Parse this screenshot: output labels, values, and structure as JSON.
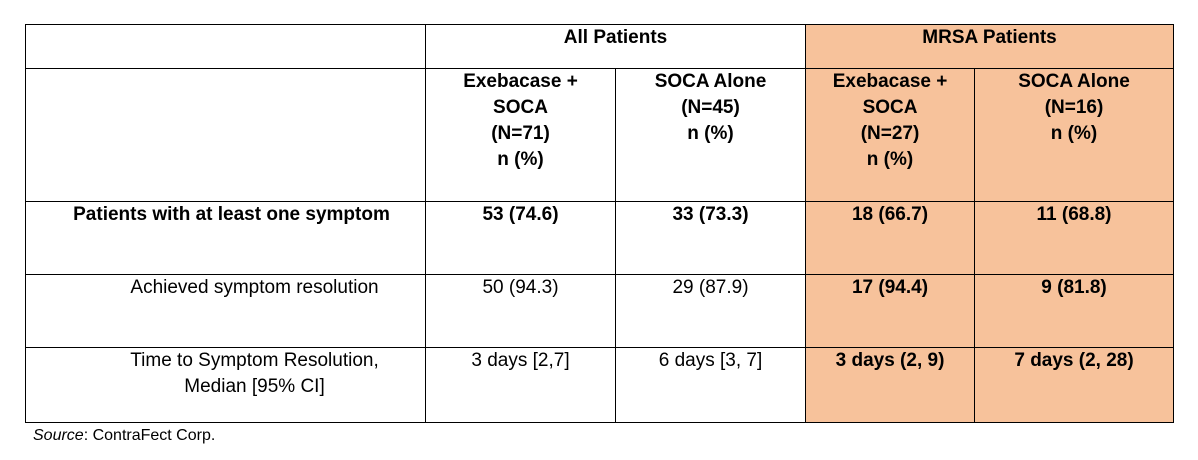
{
  "table": {
    "groups": [
      {
        "label": "",
        "span": 1
      },
      {
        "label": "All Patients",
        "span": 2
      },
      {
        "label": "MRSA Patients",
        "span": 2
      }
    ],
    "arms": [
      {
        "lines": [
          "Exebacase +",
          "SOCA",
          "(N=71)",
          "n (%)"
        ]
      },
      {
        "lines": [
          "SOCA Alone",
          "(N=45)",
          "n (%)"
        ]
      },
      {
        "lines": [
          "Exebacase +",
          "SOCA",
          "(N=27)",
          "n (%)"
        ]
      },
      {
        "lines": [
          "SOCA Alone",
          "(N=16)",
          "n (%)"
        ]
      }
    ],
    "rows": [
      {
        "label_lines": [
          "Patients with at least one symptom"
        ],
        "values": [
          "53 (74.6)",
          "33 (73.3)",
          "18 (66.7)",
          "11 (68.8)"
        ]
      },
      {
        "label_lines": [
          "Achieved symptom resolution"
        ],
        "values": [
          "50 (94.3)",
          "29 (87.9)",
          "17 (94.4)",
          "9 (81.8)"
        ]
      },
      {
        "label_lines": [
          "Time to Symptom Resolution,",
          "Median [95% CI]"
        ],
        "values": [
          "3 days [2,7]",
          "6 days [3, 7]",
          "3 days (2, 9)",
          "7 days (2, 28)"
        ]
      }
    ]
  },
  "source": {
    "label": "Source",
    "text": ": ContraFect Corp."
  },
  "colors": {
    "mrsa_highlight": "#f7c29b"
  }
}
